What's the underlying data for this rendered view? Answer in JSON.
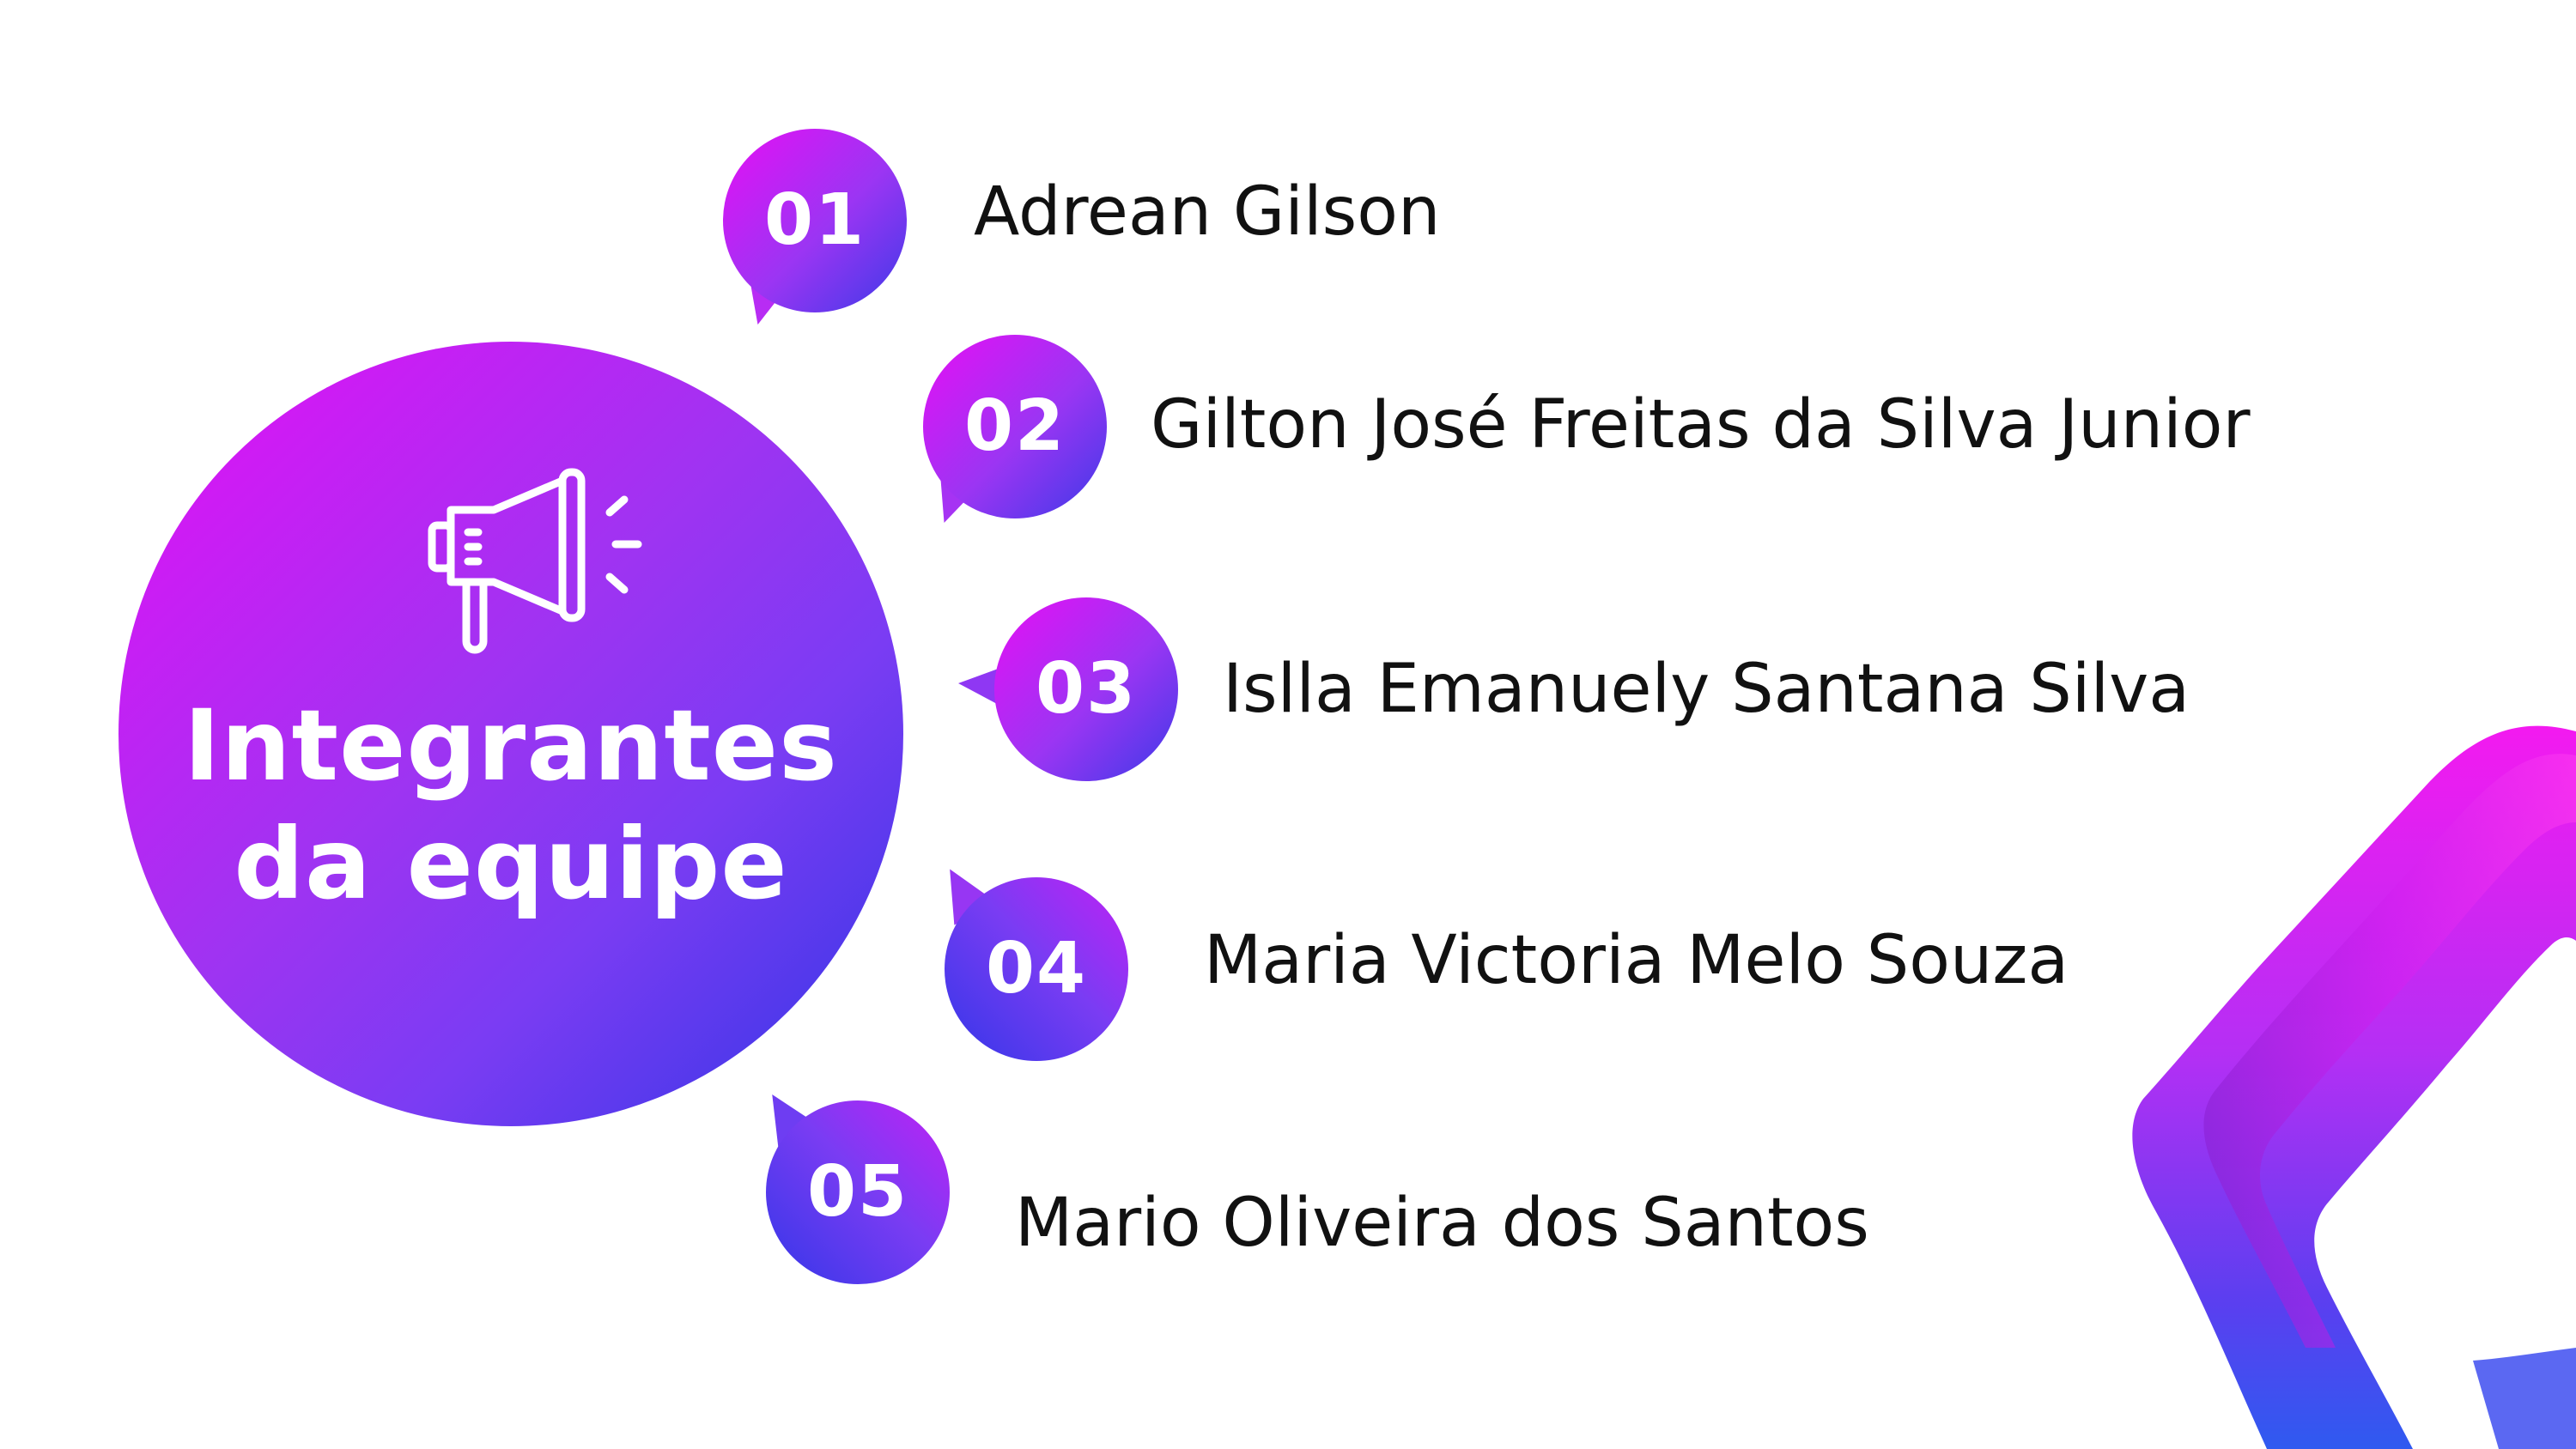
{
  "title": {
    "line1": "Integrantes",
    "line2": "da equipe",
    "icon": "megaphone-icon"
  },
  "members": [
    {
      "number": "01",
      "name": "Adrean Gilson"
    },
    {
      "number": "02",
      "name": "Gilton José Freitas da Silva Junior"
    },
    {
      "number": "03",
      "name": "Islla Emanuely Santana Silva"
    },
    {
      "number": "04",
      "name": "Maria Victoria Melo Souza"
    },
    {
      "number": "05",
      "name": "Mario Oliveira dos Santos"
    }
  ],
  "colors": {
    "gradient_start": "#e60ff5",
    "gradient_mid": "#a033f2",
    "gradient_end": "#2f36e5",
    "text": "#111111",
    "background": "#ffffff"
  }
}
